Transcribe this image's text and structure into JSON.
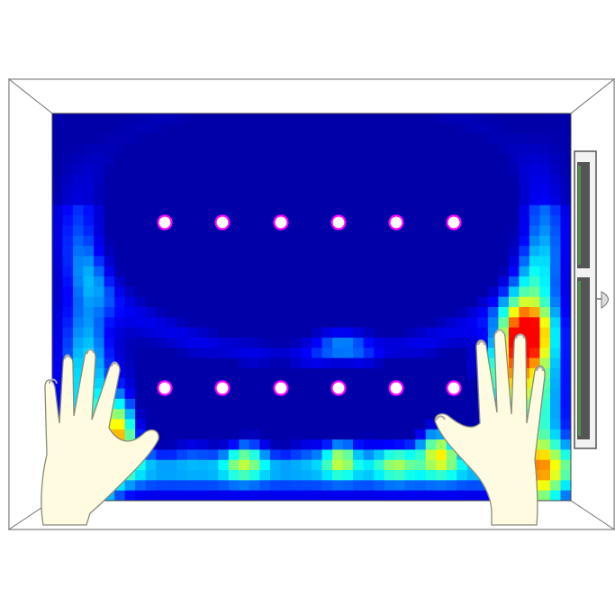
{
  "scene": {
    "kind": "room-plan-heatmap",
    "colormap": [
      "#00007f",
      "#0000ff",
      "#00ffff",
      "#ffff00",
      "#ff0000"
    ],
    "heatmap_resolution": {
      "cols": 50,
      "rows": 38
    },
    "room": {
      "wall_color": "#ffffff",
      "wall_edge_color": "#555555",
      "floor_color": "#00008b"
    },
    "window_frame_color": "#555555",
    "window_glass_color": "#4f8f4f",
    "lights": {
      "fill_color": "#ffffff",
      "ring_color": "#ff00ff",
      "rows": [
        {
          "label": "upper-row",
          "count": 6
        },
        {
          "label": "lower-row",
          "count": 6
        }
      ]
    },
    "hands": {
      "skin_color": "#fffbe0",
      "outline_color": "#8a8a7a",
      "items": [
        {
          "name": "left-hand"
        },
        {
          "name": "right-hand"
        }
      ]
    },
    "icons": [
      "light-fixture-icon",
      "hand-icon",
      "wall-lamp-icon",
      "window-icon"
    ]
  }
}
